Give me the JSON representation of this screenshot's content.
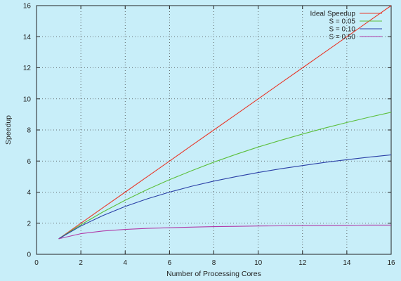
{
  "chart_data": {
    "type": "line",
    "title": "",
    "xlabel": "Number of Processing Cores",
    "ylabel": "Speedup",
    "xlim": [
      0,
      16
    ],
    "ylim": [
      0,
      16
    ],
    "xticks": [
      "0",
      "2",
      "4",
      "6",
      "8",
      "10",
      "12",
      "14",
      "16"
    ],
    "yticks": [
      "0",
      "2",
      "4",
      "6",
      "8",
      "10",
      "12",
      "14",
      "16"
    ],
    "grid": true,
    "legend_position": "top-right",
    "x": [
      1,
      2,
      3,
      4,
      5,
      6,
      7,
      8,
      9,
      10,
      11,
      12,
      13,
      14,
      15,
      16
    ],
    "series": [
      {
        "name": "Ideal Speedup",
        "color": "#e8392b",
        "values": [
          1,
          2,
          3,
          4,
          5,
          6,
          7,
          8,
          9,
          10,
          11,
          12,
          13,
          14,
          15,
          16
        ]
      },
      {
        "name": "S = 0.05",
        "color": "#5cbf3c",
        "values": [
          1.0,
          1.9,
          2.73,
          3.48,
          4.17,
          4.8,
          5.38,
          5.93,
          6.43,
          6.9,
          7.33,
          7.74,
          8.12,
          8.48,
          8.82,
          9.14
        ]
      },
      {
        "name": "S = 0.10",
        "color": "#2a3fa6",
        "values": [
          1.0,
          1.82,
          2.5,
          3.08,
          3.57,
          4.0,
          4.38,
          4.71,
          5.0,
          5.26,
          5.5,
          5.71,
          5.91,
          6.09,
          6.25,
          6.4
        ]
      },
      {
        "name": "S = 0.50",
        "color": "#b03aa8",
        "values": [
          1.0,
          1.33,
          1.5,
          1.6,
          1.67,
          1.71,
          1.75,
          1.78,
          1.8,
          1.82,
          1.83,
          1.85,
          1.86,
          1.87,
          1.88,
          1.88
        ]
      }
    ]
  }
}
